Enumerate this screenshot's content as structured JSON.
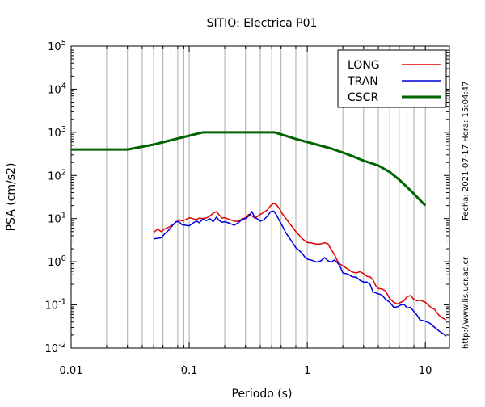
{
  "chart_data": {
    "type": "line",
    "title": "SITIO: Electrica P01",
    "xlabel": "Periodo (s)",
    "ylabel": "PSA (cm/s2)",
    "xscale": "log",
    "yscale": "log",
    "xlim": [
      0.01,
      16
    ],
    "ylim": [
      0.01,
      100000
    ],
    "x_ticks": [
      {
        "value": 0.01,
        "label": "0.01"
      },
      {
        "value": 0.1,
        "label": "0.1"
      },
      {
        "value": 1,
        "label": "1"
      },
      {
        "value": 10,
        "label": "10"
      }
    ],
    "y_ticks": [
      {
        "value": 0.01,
        "base": "10",
        "exp": "-2"
      },
      {
        "value": 0.1,
        "base": "10",
        "exp": "-1"
      },
      {
        "value": 1,
        "base": "10",
        "exp": "0"
      },
      {
        "value": 10,
        "base": "10",
        "exp": "1"
      },
      {
        "value": 100,
        "base": "10",
        "exp": "2"
      },
      {
        "value": 1000,
        "base": "10",
        "exp": "3"
      },
      {
        "value": 10000,
        "base": "10",
        "exp": "4"
      },
      {
        "value": 100000,
        "base": "10",
        "exp": "5"
      }
    ],
    "grid": "vertical minor and major lines",
    "legend_position": "top-right",
    "series": [
      {
        "name": "LONG",
        "color": "#e00000",
        "points": [
          [
            0.05,
            4.8
          ],
          [
            0.054,
            5.7
          ],
          [
            0.058,
            5.0
          ],
          [
            0.062,
            5.8
          ],
          [
            0.067,
            6.3
          ],
          [
            0.072,
            7.1
          ],
          [
            0.077,
            8.2
          ],
          [
            0.082,
            9.5
          ],
          [
            0.087,
            8.8
          ],
          [
            0.093,
            9.4
          ],
          [
            0.1,
            10.5
          ],
          [
            0.107,
            10.0
          ],
          [
            0.115,
            9.4
          ],
          [
            0.122,
            10.3
          ],
          [
            0.13,
            10.0
          ],
          [
            0.14,
            10.3
          ],
          [
            0.15,
            11.5
          ],
          [
            0.16,
            13.5
          ],
          [
            0.17,
            14.5
          ],
          [
            0.18,
            12.0
          ],
          [
            0.19,
            10.3
          ],
          [
            0.2,
            10.5
          ],
          [
            0.22,
            9.5
          ],
          [
            0.24,
            8.8
          ],
          [
            0.26,
            8.6
          ],
          [
            0.28,
            9.8
          ],
          [
            0.3,
            10.5
          ],
          [
            0.32,
            12.5
          ],
          [
            0.34,
            11.5
          ],
          [
            0.36,
            10.3
          ],
          [
            0.38,
            11.3
          ],
          [
            0.4,
            12.5
          ],
          [
            0.43,
            14.0
          ],
          [
            0.46,
            16.0
          ],
          [
            0.49,
            20.0
          ],
          [
            0.52,
            22.5
          ],
          [
            0.55,
            21.0
          ],
          [
            0.58,
            17.0
          ],
          [
            0.62,
            12.5
          ],
          [
            0.66,
            10.0
          ],
          [
            0.7,
            8.0
          ],
          [
            0.75,
            6.3
          ],
          [
            0.8,
            5.0
          ],
          [
            0.85,
            4.2
          ],
          [
            0.9,
            3.5
          ],
          [
            0.95,
            3.1
          ],
          [
            1.0,
            2.8
          ],
          [
            1.1,
            2.7
          ],
          [
            1.2,
            2.55
          ],
          [
            1.3,
            2.6
          ],
          [
            1.4,
            2.75
          ],
          [
            1.5,
            2.6
          ],
          [
            1.6,
            1.9
          ],
          [
            1.7,
            1.45
          ],
          [
            1.8,
            1.05
          ],
          [
            1.9,
            0.88
          ],
          [
            2.0,
            0.8
          ],
          [
            2.2,
            0.68
          ],
          [
            2.4,
            0.58
          ],
          [
            2.6,
            0.55
          ],
          [
            2.8,
            0.59
          ],
          [
            3.0,
            0.53
          ],
          [
            3.2,
            0.46
          ],
          [
            3.4,
            0.45
          ],
          [
            3.6,
            0.38
          ],
          [
            3.8,
            0.28
          ],
          [
            4.0,
            0.24
          ],
          [
            4.3,
            0.235
          ],
          [
            4.6,
            0.21
          ],
          [
            5.0,
            0.14
          ],
          [
            5.4,
            0.115
          ],
          [
            5.8,
            0.105
          ],
          [
            6.2,
            0.115
          ],
          [
            6.6,
            0.125
          ],
          [
            7.0,
            0.155
          ],
          [
            7.5,
            0.165
          ],
          [
            8.0,
            0.135
          ],
          [
            8.5,
            0.125
          ],
          [
            9.0,
            0.13
          ],
          [
            10.0,
            0.115
          ],
          [
            11.0,
            0.09
          ],
          [
            12.0,
            0.078
          ],
          [
            13.0,
            0.058
          ],
          [
            14.0,
            0.05
          ],
          [
            15.0,
            0.045
          ]
        ]
      },
      {
        "name": "TRAN",
        "color": "#0000e0",
        "points": [
          [
            0.05,
            3.4
          ],
          [
            0.054,
            3.5
          ],
          [
            0.058,
            3.6
          ],
          [
            0.062,
            4.4
          ],
          [
            0.067,
            5.4
          ],
          [
            0.072,
            6.8
          ],
          [
            0.077,
            8.4
          ],
          [
            0.082,
            8.5
          ],
          [
            0.087,
            7.2
          ],
          [
            0.093,
            7.0
          ],
          [
            0.1,
            6.8
          ],
          [
            0.107,
            7.8
          ],
          [
            0.115,
            8.8
          ],
          [
            0.122,
            8.0
          ],
          [
            0.13,
            9.7
          ],
          [
            0.14,
            9.0
          ],
          [
            0.15,
            9.9
          ],
          [
            0.16,
            8.5
          ],
          [
            0.17,
            10.8
          ],
          [
            0.18,
            9.0
          ],
          [
            0.19,
            8.2
          ],
          [
            0.2,
            8.5
          ],
          [
            0.22,
            7.8
          ],
          [
            0.24,
            7.0
          ],
          [
            0.26,
            8.0
          ],
          [
            0.28,
            9.5
          ],
          [
            0.3,
            10.0
          ],
          [
            0.32,
            11.5
          ],
          [
            0.34,
            14.5
          ],
          [
            0.36,
            10.5
          ],
          [
            0.38,
            9.8
          ],
          [
            0.4,
            8.7
          ],
          [
            0.43,
            9.5
          ],
          [
            0.46,
            11.5
          ],
          [
            0.49,
            14.5
          ],
          [
            0.52,
            15.0
          ],
          [
            0.55,
            12.0
          ],
          [
            0.58,
            9.0
          ],
          [
            0.62,
            6.5
          ],
          [
            0.66,
            4.6
          ],
          [
            0.7,
            3.7
          ],
          [
            0.75,
            2.8
          ],
          [
            0.8,
            2.1
          ],
          [
            0.85,
            1.85
          ],
          [
            0.9,
            1.6
          ],
          [
            0.95,
            1.3
          ],
          [
            1.0,
            1.15
          ],
          [
            1.1,
            1.08
          ],
          [
            1.2,
            0.98
          ],
          [
            1.3,
            1.05
          ],
          [
            1.4,
            1.25
          ],
          [
            1.5,
            1.05
          ],
          [
            1.6,
            0.98
          ],
          [
            1.7,
            1.1
          ],
          [
            1.8,
            0.95
          ],
          [
            1.9,
            0.78
          ],
          [
            2.0,
            0.55
          ],
          [
            2.2,
            0.52
          ],
          [
            2.4,
            0.45
          ],
          [
            2.6,
            0.44
          ],
          [
            2.8,
            0.37
          ],
          [
            3.0,
            0.34
          ],
          [
            3.2,
            0.34
          ],
          [
            3.4,
            0.3
          ],
          [
            3.6,
            0.2
          ],
          [
            3.8,
            0.19
          ],
          [
            4.0,
            0.18
          ],
          [
            4.3,
            0.17
          ],
          [
            4.6,
            0.135
          ],
          [
            5.0,
            0.115
          ],
          [
            5.4,
            0.088
          ],
          [
            5.8,
            0.09
          ],
          [
            6.2,
            0.1
          ],
          [
            6.6,
            0.103
          ],
          [
            7.0,
            0.085
          ],
          [
            7.5,
            0.088
          ],
          [
            8.0,
            0.07
          ],
          [
            8.5,
            0.058
          ],
          [
            9.0,
            0.045
          ],
          [
            10.0,
            0.042
          ],
          [
            11.0,
            0.037
          ],
          [
            12.0,
            0.03
          ],
          [
            13.0,
            0.025
          ],
          [
            14.0,
            0.022
          ],
          [
            15.0,
            0.019
          ]
        ]
      },
      {
        "name": "CSCR",
        "color": "#006400",
        "points": [
          [
            0.01,
            400
          ],
          [
            0.03,
            400
          ],
          [
            0.05,
            520
          ],
          [
            0.08,
            720
          ],
          [
            0.13,
            1000
          ],
          [
            0.3,
            1000
          ],
          [
            0.53,
            1000
          ],
          [
            0.8,
            700
          ],
          [
            1.2,
            520
          ],
          [
            1.6,
            420
          ],
          [
            2.0,
            340
          ],
          [
            2.5,
            270
          ],
          [
            3.0,
            220
          ],
          [
            4.0,
            170
          ],
          [
            5.0,
            120
          ],
          [
            6.0,
            80
          ],
          [
            7.5,
            45
          ],
          [
            10.0,
            20
          ]
        ]
      }
    ]
  },
  "side_notes": {
    "date": "Fecha: 2021-07-17 Hora: 15:04:47",
    "url": "http://www.lis.ucr.ac.cr"
  }
}
